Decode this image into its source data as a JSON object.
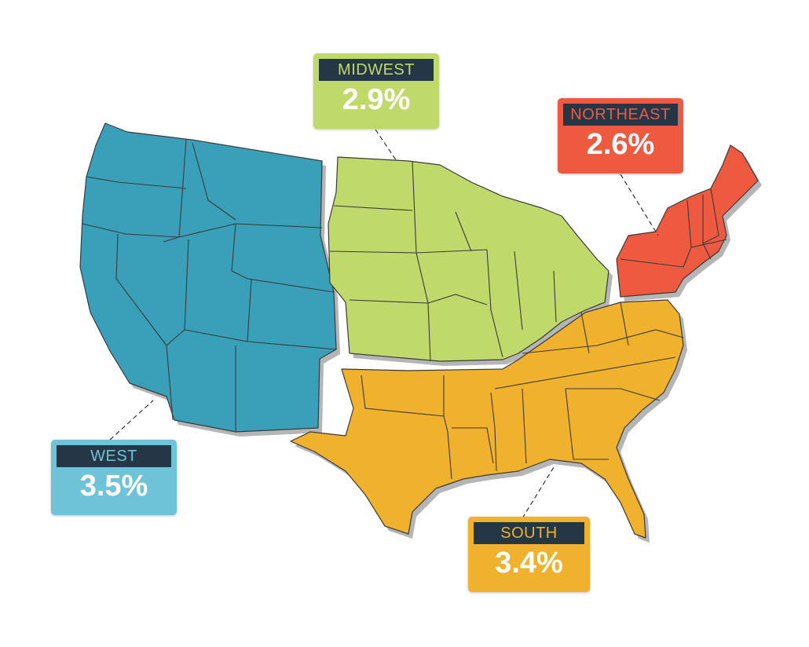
{
  "regions": [
    {
      "id": "midwest",
      "name": "MIDWEST",
      "value": "2.9%",
      "color": "#c0d96b"
    },
    {
      "id": "northeast",
      "name": "NORTHEAST",
      "value": "2.6%",
      "color": "#ee5a40"
    },
    {
      "id": "west",
      "name": "WEST",
      "value": "3.5%",
      "color": "#3a9fb8"
    },
    {
      "id": "south",
      "name": "SOUTH",
      "value": "3.4%",
      "color": "#f0b12c"
    }
  ],
  "callout_colors": {
    "west": "#6fc3d8",
    "midwest": "#c0d96b",
    "northeast": "#ee5a40",
    "south": "#f0b12c"
  },
  "label_bar_color": "#253746"
}
